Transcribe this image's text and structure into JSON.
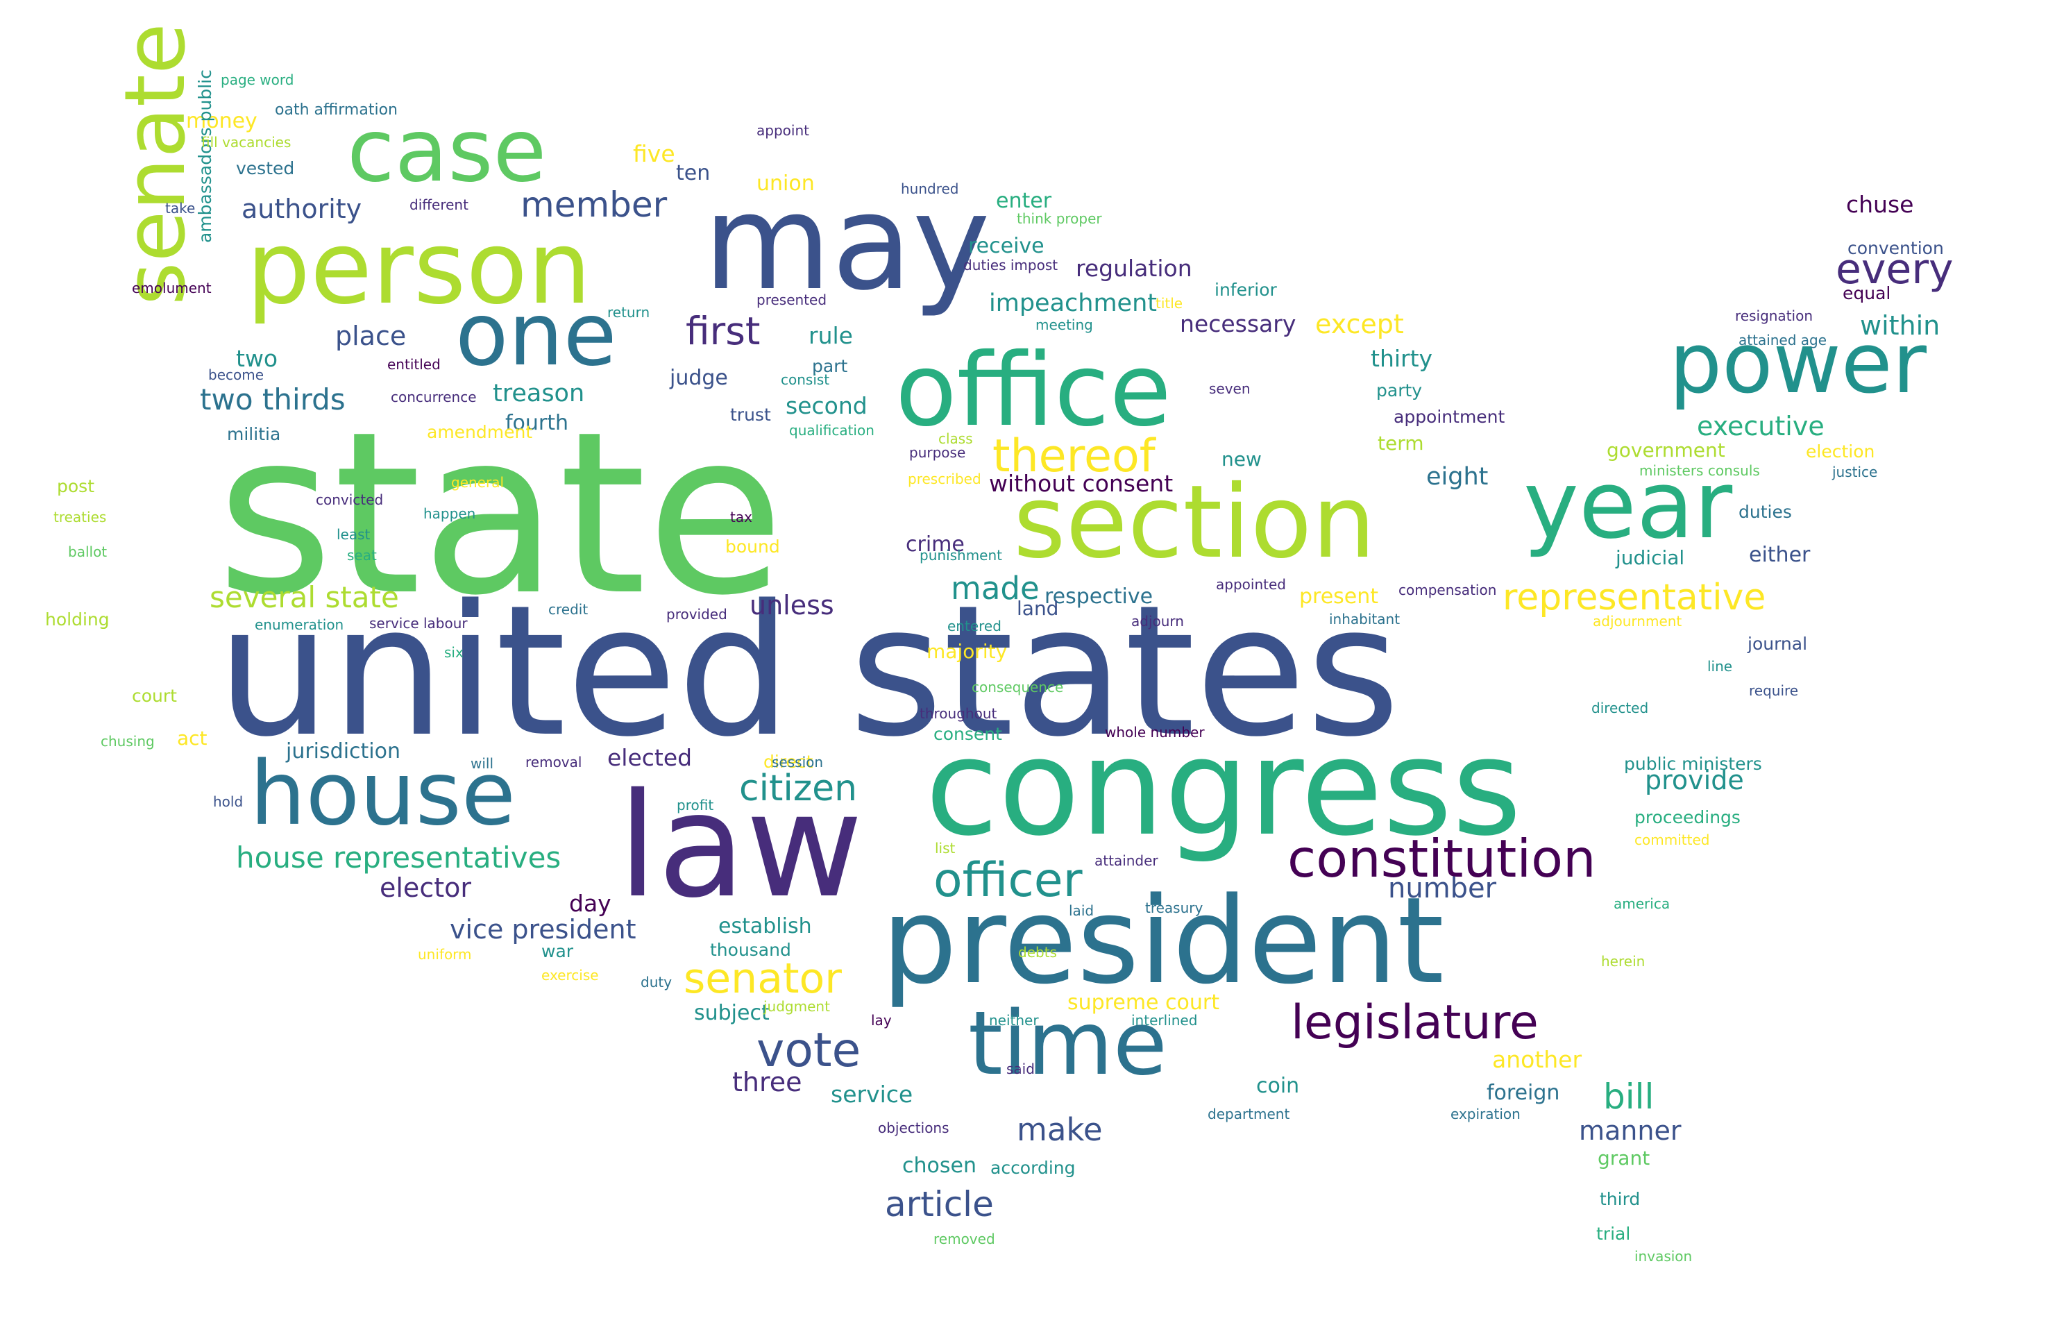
{
  "palette": {
    "c1": "#3b528b",
    "c2": "#2c728e",
    "c3": "#21918c",
    "c4": "#28ae80",
    "c5": "#5ec962",
    "c6": "#addc30",
    "c7": "#fde725",
    "c8": "#472d7b",
    "c9": "#440154"
  },
  "words": [
    {
      "text": "state",
      "color": "c5"
    },
    {
      "text": "united states",
      "color": "c1"
    },
    {
      "text": "congress",
      "color": "c4"
    },
    {
      "text": "law",
      "color": "c8"
    },
    {
      "text": "president",
      "color": "c2"
    },
    {
      "text": "may",
      "color": "c1"
    },
    {
      "text": "person",
      "color": "c6"
    },
    {
      "text": "case",
      "color": "c5"
    },
    {
      "text": "office",
      "color": "c4"
    },
    {
      "text": "section",
      "color": "c6"
    },
    {
      "text": "year",
      "color": "c4"
    },
    {
      "text": "senate",
      "color": "c6"
    },
    {
      "text": "one",
      "color": "c2"
    },
    {
      "text": "house",
      "color": "c2"
    },
    {
      "text": "power",
      "color": "c3"
    },
    {
      "text": "time",
      "color": "c2"
    },
    {
      "text": "constitution",
      "color": "c9"
    },
    {
      "text": "officer",
      "color": "c3"
    },
    {
      "text": "legislature",
      "color": "c9"
    },
    {
      "text": "senator",
      "color": "c7"
    },
    {
      "text": "vote",
      "color": "c1"
    },
    {
      "text": "citizen",
      "color": "c3"
    },
    {
      "text": "representative",
      "color": "c7"
    },
    {
      "text": "thereof",
      "color": "c7"
    },
    {
      "text": "every",
      "color": "c8"
    },
    {
      "text": "first",
      "color": "c8"
    },
    {
      "text": "member",
      "color": "c1"
    },
    {
      "text": "article",
      "color": "c1"
    },
    {
      "text": "house representatives",
      "color": "c4"
    },
    {
      "text": "two thirds",
      "color": "c2"
    },
    {
      "text": "several state",
      "color": "c6"
    },
    {
      "text": "bill",
      "color": "c4"
    },
    {
      "text": "made",
      "color": "c3"
    },
    {
      "text": "make",
      "color": "c1"
    },
    {
      "text": "vice president",
      "color": "c1"
    },
    {
      "text": "elector",
      "color": "c8"
    },
    {
      "text": "authority",
      "color": "c1"
    },
    {
      "text": "number",
      "color": "c1"
    },
    {
      "text": "executive",
      "color": "c4"
    },
    {
      "text": "within",
      "color": "c3"
    },
    {
      "text": "place",
      "color": "c1"
    },
    {
      "text": "unless",
      "color": "c8"
    },
    {
      "text": "impeachment",
      "color": "c3"
    },
    {
      "text": "regulation",
      "color": "c8"
    },
    {
      "text": "except",
      "color": "c7"
    },
    {
      "text": "thirty",
      "color": "c3"
    },
    {
      "text": "jurisdiction",
      "color": "c2"
    },
    {
      "text": "elected",
      "color": "c8"
    },
    {
      "text": "provide",
      "color": "c3"
    },
    {
      "text": "without consent",
      "color": "c9"
    },
    {
      "text": "eight",
      "color": "c2"
    },
    {
      "text": "manner",
      "color": "c1"
    },
    {
      "text": "treason",
      "color": "c3"
    },
    {
      "text": "two",
      "color": "c3"
    },
    {
      "text": "rule",
      "color": "c3"
    },
    {
      "text": "chuse",
      "color": "c9"
    },
    {
      "text": "three",
      "color": "c8"
    },
    {
      "text": "service",
      "color": "c3"
    },
    {
      "text": "money",
      "color": "c7"
    },
    {
      "text": "five",
      "color": "c7"
    },
    {
      "text": "necessary",
      "color": "c8"
    },
    {
      "text": "second",
      "color": "c3"
    },
    {
      "text": "another",
      "color": "c7"
    },
    {
      "text": "establish",
      "color": "c3"
    },
    {
      "text": "day",
      "color": "c9"
    },
    {
      "text": "chosen",
      "color": "c3"
    },
    {
      "text": "respective",
      "color": "c2"
    },
    {
      "text": "union",
      "color": "c7"
    },
    {
      "text": "crime",
      "color": "c8"
    },
    {
      "text": "foreign",
      "color": "c2"
    },
    {
      "text": "supreme court",
      "color": "c7"
    },
    {
      "text": "coin",
      "color": "c3"
    },
    {
      "text": "subject",
      "color": "c3"
    },
    {
      "text": "fourth",
      "color": "c2"
    },
    {
      "text": "judge",
      "color": "c1"
    },
    {
      "text": "enter",
      "color": "c4"
    },
    {
      "text": "receive",
      "color": "c3"
    },
    {
      "text": "ten",
      "color": "c1"
    },
    {
      "text": "present",
      "color": "c7"
    },
    {
      "text": "either",
      "color": "c1"
    },
    {
      "text": "proceedings",
      "color": "c4"
    },
    {
      "text": "majority",
      "color": "c7"
    },
    {
      "text": "government",
      "color": "c6"
    },
    {
      "text": "grant",
      "color": "c5"
    },
    {
      "text": "term",
      "color": "c6"
    },
    {
      "text": "new",
      "color": "c3"
    },
    {
      "text": "consent",
      "color": "c4"
    },
    {
      "text": "amendment",
      "color": "c7"
    },
    {
      "text": "land",
      "color": "c1"
    },
    {
      "text": "public ministers",
      "color": "c3"
    },
    {
      "text": "appointment",
      "color": "c8"
    },
    {
      "text": "duties",
      "color": "c2"
    },
    {
      "text": "act",
      "color": "c7"
    },
    {
      "text": "trust",
      "color": "c1"
    },
    {
      "text": "judicial",
      "color": "c3"
    },
    {
      "text": "inferior",
      "color": "c3"
    },
    {
      "text": "direct",
      "color": "c7"
    },
    {
      "text": "journal",
      "color": "c1"
    },
    {
      "text": "according",
      "color": "c3"
    },
    {
      "text": "third",
      "color": "c3"
    },
    {
      "text": "trial",
      "color": "c4"
    },
    {
      "text": "thousand",
      "color": "c3"
    },
    {
      "text": "party",
      "color": "c3"
    },
    {
      "text": "militia",
      "color": "c2"
    },
    {
      "text": "vested",
      "color": "c2"
    },
    {
      "text": "war",
      "color": "c3"
    },
    {
      "text": "part",
      "color": "c2"
    },
    {
      "text": "court",
      "color": "c6"
    },
    {
      "text": "post",
      "color": "c6"
    },
    {
      "text": "holding",
      "color": "c6"
    },
    {
      "text": "bound",
      "color": "c7"
    },
    {
      "text": "convention",
      "color": "c1"
    },
    {
      "text": "equal",
      "color": "c9"
    },
    {
      "text": "election",
      "color": "c7"
    },
    {
      "text": "ambassadors public",
      "color": "c3"
    },
    {
      "text": "page word",
      "color": "c4"
    },
    {
      "text": "oath affirmation",
      "color": "c2"
    },
    {
      "text": "fill vacancies",
      "color": "c6"
    },
    {
      "text": "appoint",
      "color": "c8"
    },
    {
      "text": "hundred",
      "color": "c1"
    },
    {
      "text": "take",
      "color": "c1"
    },
    {
      "text": "different",
      "color": "c8"
    },
    {
      "text": "emolument",
      "color": "c9"
    },
    {
      "text": "return",
      "color": "c3"
    },
    {
      "text": "presented",
      "color": "c8"
    },
    {
      "text": "duties impost",
      "color": "c8"
    },
    {
      "text": "think proper",
      "color": "c5"
    },
    {
      "text": "meeting",
      "color": "c3"
    },
    {
      "text": "title",
      "color": "c7"
    },
    {
      "text": "become",
      "color": "c1"
    },
    {
      "text": "entitled",
      "color": "c9"
    },
    {
      "text": "concurrence",
      "color": "c8"
    },
    {
      "text": "consist",
      "color": "c3"
    },
    {
      "text": "qualification",
      "color": "c4"
    },
    {
      "text": "class",
      "color": "c6"
    },
    {
      "text": "purpose",
      "color": "c8"
    },
    {
      "text": "prescribed",
      "color": "c7"
    },
    {
      "text": "seven",
      "color": "c8"
    },
    {
      "text": "resignation",
      "color": "c8"
    },
    {
      "text": "attained age",
      "color": "c2"
    },
    {
      "text": "ministers consuls",
      "color": "c5"
    },
    {
      "text": "justice",
      "color": "c2"
    },
    {
      "text": "general",
      "color": "c7"
    },
    {
      "text": "convicted",
      "color": "c8"
    },
    {
      "text": "happen",
      "color": "c3"
    },
    {
      "text": "least",
      "color": "c3"
    },
    {
      "text": "treaties",
      "color": "c6"
    },
    {
      "text": "seat",
      "color": "c4"
    },
    {
      "text": "ballot",
      "color": "c5"
    },
    {
      "text": "tax",
      "color": "c9"
    },
    {
      "text": "punishment",
      "color": "c3"
    },
    {
      "text": "appointed",
      "color": "c8"
    },
    {
      "text": "compensation",
      "color": "c8"
    },
    {
      "text": "enumeration",
      "color": "c3"
    },
    {
      "text": "service labour",
      "color": "c8"
    },
    {
      "text": "credit",
      "color": "c2"
    },
    {
      "text": "provided",
      "color": "c8"
    },
    {
      "text": "entered",
      "color": "c3"
    },
    {
      "text": "adjourn",
      "color": "c8"
    },
    {
      "text": "inhabitant",
      "color": "c2"
    },
    {
      "text": "adjournment",
      "color": "c7"
    },
    {
      "text": "six",
      "color": "c4"
    },
    {
      "text": "consequence",
      "color": "c5"
    },
    {
      "text": "line",
      "color": "c3"
    },
    {
      "text": "require",
      "color": "c1"
    },
    {
      "text": "throughout",
      "color": "c8"
    },
    {
      "text": "whole number",
      "color": "c9"
    },
    {
      "text": "directed",
      "color": "c3"
    },
    {
      "text": "chusing",
      "color": "c5"
    },
    {
      "text": "will",
      "color": "c2"
    },
    {
      "text": "removal",
      "color": "c8"
    },
    {
      "text": "session",
      "color": "c2"
    },
    {
      "text": "hold",
      "color": "c1"
    },
    {
      "text": "profit",
      "color": "c3"
    },
    {
      "text": "list",
      "color": "c6"
    },
    {
      "text": "committed",
      "color": "c7"
    },
    {
      "text": "attainder",
      "color": "c8"
    },
    {
      "text": "laid",
      "color": "c2"
    },
    {
      "text": "treasury",
      "color": "c2"
    },
    {
      "text": "america",
      "color": "c4"
    },
    {
      "text": "uniform",
      "color": "c7"
    },
    {
      "text": "exercise",
      "color": "c7"
    },
    {
      "text": "debts",
      "color": "c6"
    },
    {
      "text": "duty",
      "color": "c2"
    },
    {
      "text": "herein",
      "color": "c6"
    },
    {
      "text": "judgment",
      "color": "c6"
    },
    {
      "text": "lay",
      "color": "c9"
    },
    {
      "text": "neither",
      "color": "c3"
    },
    {
      "text": "interlined",
      "color": "c3"
    },
    {
      "text": "said",
      "color": "c8"
    },
    {
      "text": "objections",
      "color": "c8"
    },
    {
      "text": "department",
      "color": "c2"
    },
    {
      "text": "expiration",
      "color": "c2"
    },
    {
      "text": "removed",
      "color": "c5"
    },
    {
      "text": "invasion",
      "color": "c5"
    }
  ]
}
